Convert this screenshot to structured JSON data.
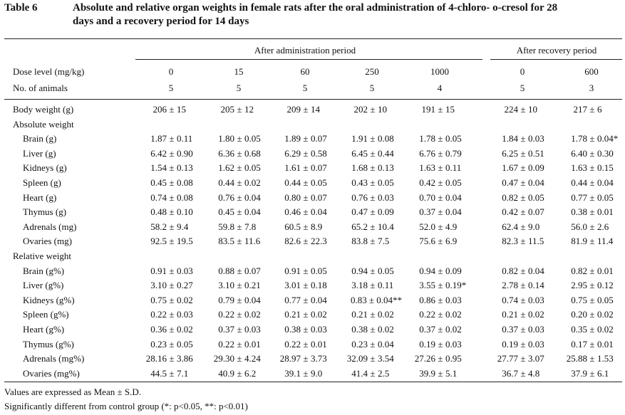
{
  "title": {
    "label": "Table 6",
    "line1": "Absolute and relative organ weights in female rats after the oral administration of 4-chloro- o-cresol for 28",
    "line2": "days and a recovery period for 14 days"
  },
  "header": {
    "group_admin": "After administration period",
    "group_recovery": "After recovery period",
    "dose_label": "Dose level (mg/kg)",
    "animals_label": "No. of animals",
    "doses": [
      "0",
      "15",
      "60",
      "250",
      "1000",
      "0",
      "600"
    ],
    "animals": [
      "5",
      "5",
      "5",
      "5",
      "4",
      "5",
      "3"
    ]
  },
  "rows": [
    {
      "label": "Body weight (g)",
      "indent": false,
      "values": [
        "206 ± 15",
        "205 ± 12",
        "209 ± 14",
        "202 ± 10",
        "191 ± 15",
        "224 ± 10",
        "217 ± 6"
      ]
    },
    {
      "label": "Absolute weight",
      "indent": false,
      "values": []
    },
    {
      "label": "Brain (g)",
      "indent": true,
      "values": [
        "1.87 ± 0.11",
        "1.80 ± 0.05",
        "1.89 ± 0.07",
        "1.91 ± 0.08",
        "1.78 ± 0.05",
        "1.84 ± 0.03",
        "1.78 ± 0.04*"
      ]
    },
    {
      "label": "Liver (g)",
      "indent": true,
      "values": [
        "6.42 ± 0.90",
        "6.36 ± 0.68",
        "6.29 ± 0.58",
        "6.45 ± 0.44",
        "6.76 ± 0.79",
        "6.25 ± 0.51",
        "6.40 ± 0.30"
      ]
    },
    {
      "label": "Kidneys (g)",
      "indent": true,
      "values": [
        "1.54 ± 0.13",
        "1.62 ± 0.05",
        "1.61 ± 0.07",
        "1.68 ± 0.13",
        "1.63 ± 0.11",
        "1.67 ± 0.09",
        "1.63 ± 0.15"
      ]
    },
    {
      "label": "Spleen (g)",
      "indent": true,
      "values": [
        "0.45 ± 0.08",
        "0.44 ± 0.02",
        "0.44 ± 0.05",
        "0.43 ± 0.05",
        "0.42 ± 0.05",
        "0.47 ± 0.04",
        "0.44 ± 0.04"
      ]
    },
    {
      "label": "Heart (g)",
      "indent": true,
      "values": [
        "0.74 ± 0.08",
        "0.76 ± 0.04",
        "0.80 ± 0.07",
        "0.76 ± 0.03",
        "0.70 ± 0.04",
        "0.82 ± 0.05",
        "0.77 ± 0.05"
      ]
    },
    {
      "label": "Thymus (g)",
      "indent": true,
      "values": [
        "0.48 ± 0.10",
        "0.45 ± 0.04",
        "0.46 ± 0.04",
        "0.47 ± 0.09",
        "0.37 ± 0.04",
        "0.42 ± 0.07",
        "0.38 ± 0.01"
      ]
    },
    {
      "label": "Adrenals (mg)",
      "indent": true,
      "values": [
        "58.2 ± 9.4",
        "59.8 ± 7.8",
        "60.5 ± 8.9",
        "65.2 ± 10.4",
        "52.0 ± 4.9",
        "62.4 ± 9.0",
        "56.0 ± 2.6"
      ]
    },
    {
      "label": "Ovaries (mg)",
      "indent": true,
      "values": [
        "92.5 ± 19.5",
        "83.5 ± 11.6",
        "82.6 ± 22.3",
        "83.8 ± 7.5",
        "75.6 ± 6.9",
        "82.3 ± 11.5",
        "81.9 ± 11.4"
      ]
    },
    {
      "label": "Relative weight",
      "indent": false,
      "values": []
    },
    {
      "label": "Brain (g%)",
      "indent": true,
      "values": [
        "0.91 ± 0.03",
        "0.88 ± 0.07",
        "0.91 ± 0.05",
        "0.94 ± 0.05",
        "0.94 ± 0.09",
        "0.82 ± 0.04",
        "0.82 ± 0.01"
      ]
    },
    {
      "label": "Liver (g%)",
      "indent": true,
      "values": [
        "3.10 ± 0.27",
        "3.10 ± 0.21",
        "3.01 ± 0.18",
        "3.18 ± 0.11",
        "3.55 ± 0.19*",
        "2.78 ± 0.14",
        "2.95 ± 0.12"
      ]
    },
    {
      "label": "Kidneys (g%)",
      "indent": true,
      "values": [
        "0.75 ± 0.02",
        "0.79 ± 0.04",
        "0.77 ± 0.04",
        "0.83 ± 0.04**",
        "0.86 ± 0.03",
        "0.74 ± 0.03",
        "0.75 ± 0.05"
      ]
    },
    {
      "label": "Spleen (g%)",
      "indent": true,
      "values": [
        "0.22 ± 0.03",
        "0.22 ± 0.02",
        "0.21 ± 0.02",
        "0.21 ± 0.02",
        "0.22 ± 0.02",
        "0.21 ± 0.02",
        "0.20 ± 0.02"
      ]
    },
    {
      "label": "Heart (g%)",
      "indent": true,
      "values": [
        "0.36 ± 0.02",
        "0.37 ± 0.03",
        "0.38 ± 0.03",
        "0.38 ± 0.02",
        "0.37 ± 0.02",
        "0.37 ± 0.03",
        "0.35 ± 0.02"
      ]
    },
    {
      "label": "Thymus (g%)",
      "indent": true,
      "values": [
        "0.23 ± 0.05",
        "0.22 ± 0.01",
        "0.22 ± 0.01",
        "0.23 ± 0.04",
        "0.19 ± 0.03",
        "0.19 ± 0.03",
        "0.17 ± 0.01"
      ]
    },
    {
      "label": "Adrenals (mg%)",
      "indent": true,
      "values": [
        "28.16 ± 3.86",
        "29.30 ± 4.24",
        "28.97 ± 3.73",
        "32.09 ± 3.54",
        "27.26 ± 0.95",
        "27.77 ± 3.07",
        "25.88 ± 1.53"
      ]
    },
    {
      "label": "Ovaries (mg%)",
      "indent": true,
      "values": [
        "44.5 ± 7.1",
        "40.9 ± 6.2",
        "39.1 ± 9.0",
        "41.4 ± 2.5",
        "39.9 ± 5.1",
        "36.7 ± 4.8",
        "37.9 ± 6.1"
      ]
    }
  ],
  "footnotes": [
    "Values are expressed as Mean ± S.D.",
    "Significantly different from control group (*: p<0.05, **: p<0.01)"
  ]
}
